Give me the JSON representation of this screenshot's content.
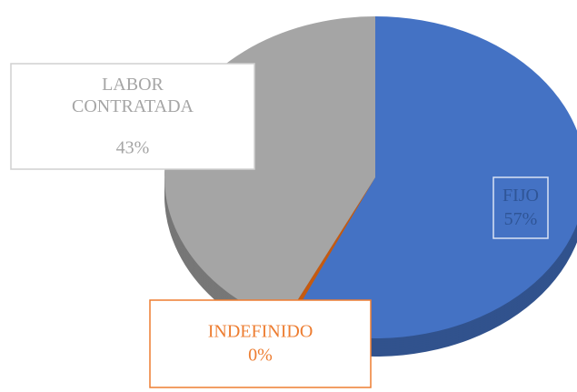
{
  "chart_data": {
    "type": "pie",
    "categories": [
      "FIJO",
      "INDEFINIDO",
      "LABOR CONTRATADA"
    ],
    "values": [
      57,
      0.4,
      43
    ],
    "value_labels": [
      "57%",
      "0%",
      "43%"
    ],
    "colors": [
      "#4472c4",
      "#c55a11",
      "#a5a5a5"
    ],
    "label_colors": [
      "#2f5597",
      "#ed7d31",
      "#a5a5a5"
    ]
  }
}
